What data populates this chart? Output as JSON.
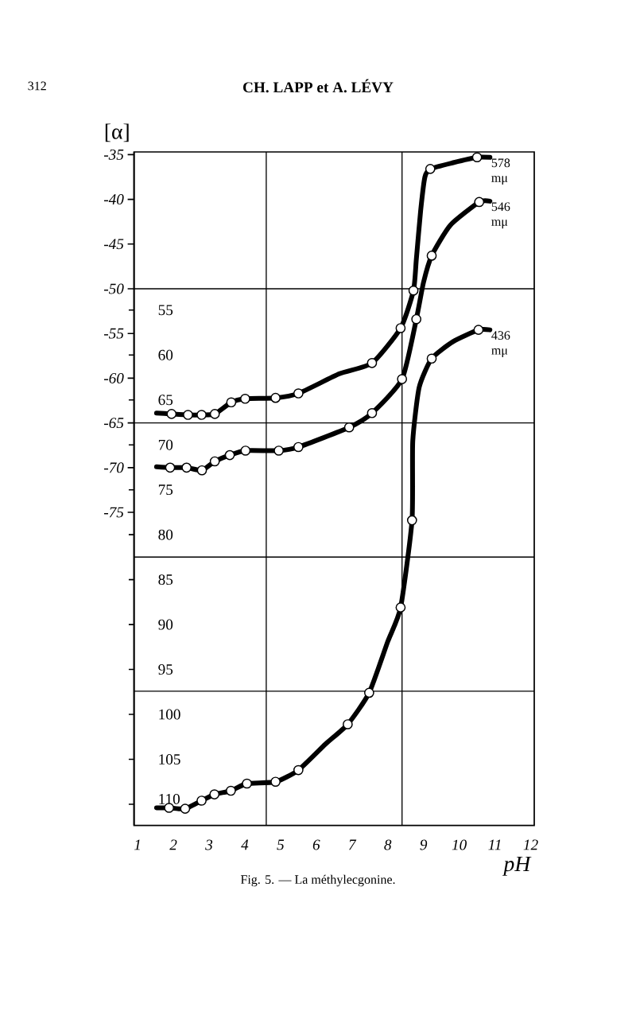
{
  "chart_data": {
    "type": "line",
    "title": "CH. LAPP et A. LÉVY",
    "ylabel": "[α]",
    "xlabel": "pH",
    "annotations": [
      "312",
      "Fig. 5. — La méthylecgonine."
    ],
    "xlim": [
      0.9,
      12.1
    ],
    "xticks": [
      1,
      2,
      3,
      4,
      5,
      6,
      7,
      8,
      9,
      10,
      11,
      12
    ],
    "ylim": [
      -110,
      -34.7
    ],
    "yticks": [
      -35,
      -40,
      -45,
      -50,
      -55,
      -60,
      -65,
      -70,
      -75
    ],
    "y2lim": [
      112.35,
      37.4
    ],
    "y2ticks": [
      55,
      60,
      65,
      70,
      75,
      80,
      85,
      90,
      95,
      100,
      105,
      110
    ],
    "ref_lines": [
      {
        "axis": "y",
        "value": -50,
        "color": "#000000"
      },
      {
        "axis": "y",
        "value": -65,
        "color": "#000000"
      },
      {
        "axis": "y",
        "value": -80,
        "color": "#000000"
      },
      {
        "axis": "y",
        "value": -95,
        "color": "#000000"
      },
      {
        "axis": "x",
        "value": 4.6,
        "color": "#000000"
      },
      {
        "axis": "x",
        "value": 8.4,
        "color": "#000000"
      }
    ],
    "series": [
      {
        "name": "578 mμ",
        "marker": "none",
        "color": "#000000",
        "x": [
          1.53,
          1.95,
          2.41,
          2.79,
          3.16,
          3.62,
          4.01,
          4.86,
          5.5,
          6.65,
          7.56,
          8.36,
          8.72,
          8.8,
          8.92,
          9.04,
          9.19,
          9.83,
          10.5,
          10.86
        ],
        "values": [
          -63.9,
          -64.0,
          -64.1,
          -64.1,
          -64.0,
          -62.7,
          -62.3,
          -62.2,
          -61.7,
          -59.5,
          -58.3,
          -54.4,
          -50.2,
          -46.7,
          -41.3,
          -37.5,
          -36.6,
          -35.9,
          -35.3,
          -35.3
        ]
      },
      {
        "type": "scatter",
        "marker": "circle",
        "color": "#000000",
        "x": [
          1.95,
          2.41,
          2.79,
          3.16,
          3.62,
          4.01,
          4.86,
          5.5,
          7.56,
          8.36,
          8.72,
          9.19,
          10.5
        ],
        "values": [
          -64.0,
          -64.1,
          -64.1,
          -64.0,
          -62.7,
          -62.3,
          -62.2,
          -61.7,
          -58.3,
          -54.4,
          -50.2,
          -36.6,
          -35.3
        ]
      },
      {
        "name": "546 mμ",
        "marker": "none",
        "color": "#000000",
        "x": [
          1.53,
          1.91,
          2.37,
          2.8,
          3.16,
          3.58,
          4.02,
          4.95,
          5.5,
          6.92,
          7.56,
          8.4,
          8.8,
          9.0,
          9.23,
          9.75,
          10.56,
          10.86
        ],
        "values": [
          -69.9,
          -70.0,
          -70.0,
          -70.3,
          -69.3,
          -68.6,
          -68.1,
          -68.1,
          -67.7,
          -65.5,
          -63.9,
          -60.1,
          -53.4,
          -49.3,
          -46.3,
          -42.9,
          -40.3,
          -40.2
        ]
      },
      {
        "type": "scatter",
        "marker": "circle",
        "color": "#000000",
        "x": [
          1.91,
          2.37,
          2.8,
          3.16,
          3.58,
          4.02,
          4.95,
          5.5,
          6.92,
          7.56,
          8.4,
          8.8,
          9.23,
          10.56
        ],
        "values": [
          -70.0,
          -70.0,
          -70.3,
          -69.3,
          -68.6,
          -68.1,
          -68.1,
          -67.7,
          -65.5,
          -63.9,
          -60.1,
          -53.4,
          -46.3,
          -40.3
        ]
      },
      {
        "name": "436 mμ",
        "marker": "none",
        "axis": "y2",
        "color": "#000000",
        "x": [
          1.53,
          1.88,
          2.33,
          2.79,
          3.15,
          3.61,
          4.06,
          4.86,
          5.5,
          6.26,
          6.88,
          7.48,
          8.0,
          8.36,
          8.68,
          8.7,
          8.88,
          9.23,
          9.83,
          10.54,
          10.86
        ],
        "values": [
          110.4,
          110.4,
          110.5,
          109.6,
          108.9,
          108.5,
          107.7,
          107.5,
          106.2,
          103.3,
          101.1,
          97.6,
          91.9,
          88.1,
          78.4,
          69.6,
          63.6,
          60.4,
          58.5,
          57.2,
          57.2
        ]
      },
      {
        "type": "scatter",
        "marker": "circle",
        "axis": "y2",
        "color": "#000000",
        "x": [
          1.88,
          2.33,
          2.79,
          3.15,
          3.61,
          4.06,
          4.86,
          5.5,
          6.88,
          7.48,
          8.36,
          8.68,
          9.23,
          10.54
        ],
        "values": [
          110.4,
          110.5,
          109.6,
          108.9,
          108.5,
          107.7,
          107.5,
          106.2,
          101.1,
          97.6,
          88.1,
          78.4,
          60.4,
          57.2
        ]
      }
    ]
  }
}
